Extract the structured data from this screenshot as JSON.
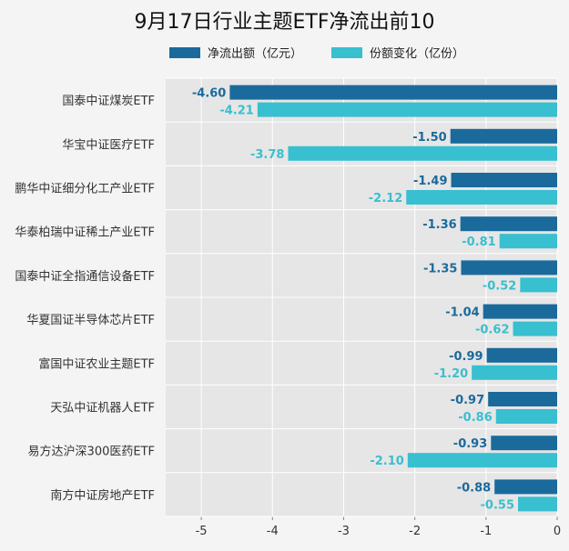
{
  "colors": {
    "net_outflow": "#1b6a9c",
    "share_change": "#38bfd0",
    "plot_bg": "#e6e6e6",
    "grid": "#ffffff",
    "page_bg": "#f4f4f4"
  },
  "legend": {
    "net_outflow_label": "净流出额（亿元）",
    "share_change_label": "份额变化（亿份）"
  },
  "chart_data": {
    "type": "bar",
    "orientation": "horizontal",
    "title": "9月17日行业主题ETF净流出前10",
    "categories": [
      "国泰中证煤炭ETF",
      "华宝中证医疗ETF",
      "鹏华中证细分化工产业ETF",
      "华泰柏瑞中证稀土产业ETF",
      "国泰中证全指通信设备ETF",
      "华夏国证半导体芯片ETF",
      "富国中证农业主题ETF",
      "天弘中证机器人ETF",
      "易方达沪深300医药ETF",
      "南方中证房地产ETF"
    ],
    "series": [
      {
        "name": "净流出额（亿元）",
        "values": [
          -4.6,
          -1.5,
          -1.49,
          -1.36,
          -1.35,
          -1.04,
          -0.99,
          -0.97,
          -0.93,
          -0.88
        ],
        "labels": [
          "-4.60",
          "-1.50",
          "-1.49",
          "-1.36",
          "-1.35",
          "-1.04",
          "-0.99",
          "-0.97",
          "-0.93",
          "-0.88"
        ]
      },
      {
        "name": "份额变化（亿份）",
        "values": [
          -4.21,
          -3.78,
          -2.12,
          -0.81,
          -0.52,
          -0.62,
          -1.2,
          -0.86,
          -2.1,
          -0.55
        ],
        "labels": [
          "-4.21",
          "-3.78",
          "-2.12",
          "-0.81",
          "-0.52",
          "-0.62",
          "-1.20",
          "-0.86",
          "-2.10",
          "-0.55"
        ]
      }
    ],
    "xlim": [
      -5.5,
      0
    ],
    "xticks": [
      -5,
      -4,
      -3,
      -2,
      -1,
      0
    ],
    "xtick_labels": [
      "-5",
      "-4",
      "-3",
      "-2",
      "-1",
      "0"
    ],
    "grid": true,
    "legend_position": "top-center"
  }
}
